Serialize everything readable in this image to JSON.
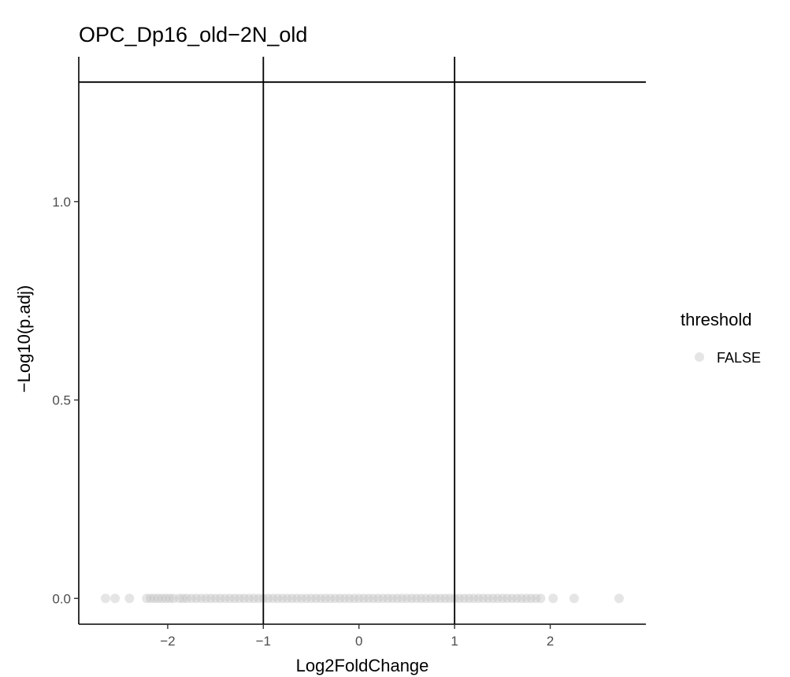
{
  "chart_data": {
    "type": "scatter",
    "title": "OPC_Dp16_old−2N_old",
    "xlabel": "Log2FoldChange",
    "ylabel": "−Log10(p.adj)",
    "xlim": [
      -2.93,
      3.0
    ],
    "ylim": [
      -0.065,
      1.365
    ],
    "xticks": [
      -2,
      -1,
      0,
      1,
      2
    ],
    "xtick_labels": [
      "−2",
      "−1",
      "0",
      "1",
      "2"
    ],
    "yticks": [
      0.0,
      0.5,
      1.0
    ],
    "ytick_labels": [
      "0.0",
      "0.5",
      "1.0"
    ],
    "grid": false,
    "reference_lines": {
      "vertical": [
        -1,
        1
      ],
      "horizontal": [
        1.30103
      ]
    },
    "legend": {
      "title": "threshold",
      "placement": "right",
      "entries": [
        {
          "label": "FALSE",
          "color": "#bfbfbf"
        }
      ]
    },
    "point_color": "#bfbfbf",
    "point_alpha": 0.4,
    "series": [
      {
        "name": "FALSE",
        "x": [
          -2.65,
          -2.55,
          -2.4,
          -2.22,
          -2.18,
          -2.14,
          -2.1,
          -2.06,
          -2.02,
          -1.98,
          -1.94,
          -1.88,
          -1.84,
          -1.8,
          -1.75,
          -1.7,
          -1.65,
          -1.6,
          -1.55,
          -1.5,
          -1.45,
          -1.4,
          -1.35,
          -1.3,
          -1.25,
          -1.2,
          -1.15,
          -1.1,
          -1.05,
          -1.0,
          -0.95,
          -0.9,
          -0.85,
          -0.8,
          -0.75,
          -0.7,
          -0.65,
          -0.6,
          -0.55,
          -0.5,
          -0.45,
          -0.4,
          -0.35,
          -0.3,
          -0.25,
          -0.2,
          -0.15,
          -0.1,
          -0.05,
          0.0,
          0.05,
          0.1,
          0.15,
          0.2,
          0.25,
          0.3,
          0.35,
          0.4,
          0.45,
          0.5,
          0.55,
          0.6,
          0.65,
          0.7,
          0.75,
          0.8,
          0.85,
          0.9,
          0.95,
          1.0,
          1.05,
          1.1,
          1.15,
          1.2,
          1.25,
          1.3,
          1.35,
          1.4,
          1.45,
          1.5,
          1.55,
          1.6,
          1.65,
          1.7,
          1.75,
          1.8,
          1.85,
          1.9,
          2.03,
          2.25,
          2.72
        ],
        "y": [
          0,
          0,
          0,
          0,
          0,
          0,
          0,
          0,
          0,
          0,
          0,
          0,
          0,
          0,
          0,
          0,
          0,
          0,
          0,
          0,
          0,
          0,
          0,
          0,
          0,
          0,
          0,
          0,
          0,
          0,
          0,
          0,
          0,
          0,
          0,
          0,
          0,
          0,
          0,
          0,
          0,
          0,
          0,
          0,
          0,
          0,
          0,
          0,
          0,
          0,
          0,
          0,
          0,
          0,
          0,
          0,
          0,
          0,
          0,
          0,
          0,
          0,
          0,
          0,
          0,
          0,
          0,
          0,
          0,
          0,
          0,
          0,
          0,
          0,
          0,
          0,
          0,
          0,
          0,
          0,
          0,
          0,
          0,
          0,
          0,
          0,
          0,
          0,
          0,
          0,
          0
        ]
      }
    ]
  }
}
